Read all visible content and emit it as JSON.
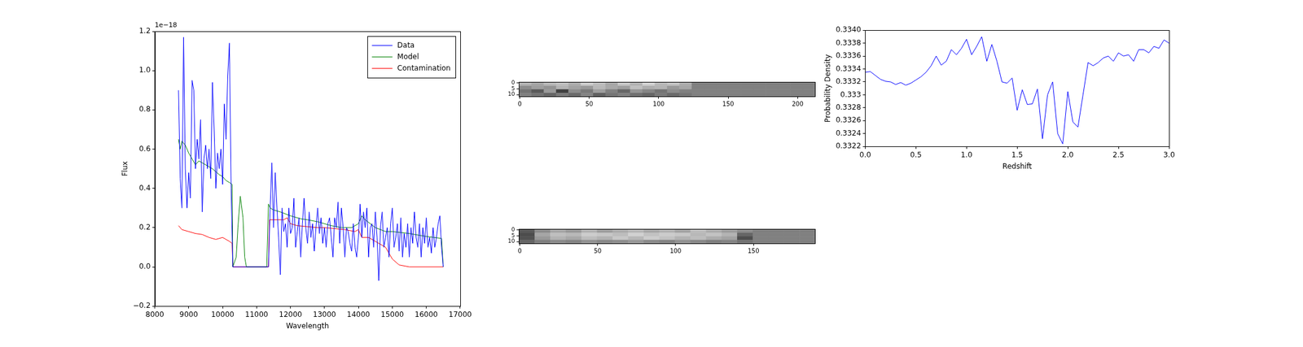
{
  "chart_data": [
    {
      "type": "line",
      "x_label": "Wavelength",
      "y_label": "Flux",
      "y_offset_text": "1e−18",
      "xlim": [
        8000,
        17000
      ],
      "xticks": [
        8000,
        9000,
        10000,
        11000,
        12000,
        13000,
        14000,
        15000,
        16000,
        17000
      ],
      "ylim": [
        -0.2,
        1.2
      ],
      "yticks": [
        {
          "value": -0.2,
          "label": "−0.2"
        },
        {
          "value": 0.0,
          "label": "0.0"
        },
        0.2,
        0.4,
        0.6,
        0.8,
        {
          "value": 1.0,
          "label": "1.0"
        },
        1.2
      ],
      "grid": false,
      "legend": "upper right",
      "series": [
        {
          "name": "Data",
          "color": "#0000ff",
          "x": [
            8700,
            8750,
            8800,
            8850,
            8900,
            8950,
            9000,
            9050,
            9100,
            9150,
            9200,
            9250,
            9300,
            9350,
            9400,
            9450,
            9500,
            9550,
            9600,
            9650,
            9700,
            9750,
            9800,
            9850,
            9900,
            9950,
            10000,
            10050,
            10100,
            10150,
            10200,
            10250,
            10300,
            11350,
            11400,
            11450,
            11500,
            11550,
            11600,
            11650,
            11700,
            11750,
            11800,
            11850,
            11900,
            11950,
            12000,
            12050,
            12100,
            12150,
            12200,
            12250,
            12300,
            12350,
            12400,
            12450,
            12500,
            12550,
            12600,
            12650,
            12700,
            12750,
            12800,
            12850,
            12900,
            12950,
            13000,
            13050,
            13100,
            13150,
            13200,
            13250,
            13300,
            13350,
            13400,
            13450,
            13500,
            13550,
            13600,
            13650,
            13700,
            13750,
            13800,
            13850,
            13900,
            13950,
            14000,
            14050,
            14100,
            14150,
            14200,
            14250,
            14300,
            14350,
            14400,
            14450,
            14500,
            14550,
            14600,
            14650,
            14700,
            14750,
            14800,
            14850,
            14900,
            14950,
            15000,
            15050,
            15100,
            15150,
            15200,
            15250,
            15300,
            15350,
            15400,
            15450,
            15500,
            15550,
            15600,
            15650,
            15700,
            15750,
            15800,
            15850,
            15900,
            15950,
            16000,
            16050,
            16100,
            16150,
            16200,
            16250,
            16300,
            16350,
            16400,
            16450,
            16500
          ],
          "values": [
            0.9,
            0.45,
            0.3,
            1.17,
            0.5,
            0.3,
            0.48,
            0.35,
            0.95,
            0.9,
            0.5,
            0.65,
            0.55,
            0.75,
            0.28,
            0.55,
            0.62,
            0.5,
            0.6,
            0.45,
            0.94,
            0.7,
            0.4,
            0.58,
            0.5,
            0.6,
            0.42,
            0.83,
            0.65,
            0.97,
            1.14,
            0.4,
            0.0,
            0.0,
            0.3,
            0.53,
            0.2,
            0.48,
            0.3,
            0.15,
            -0.04,
            0.3,
            0.18,
            0.22,
            0.1,
            0.3,
            0.17,
            0.2,
            0.35,
            0.1,
            0.18,
            0.25,
            0.05,
            0.22,
            0.35,
            0.2,
            0.12,
            0.28,
            0.15,
            0.22,
            0.08,
            0.2,
            0.3,
            0.17,
            0.25,
            0.12,
            0.2,
            0.1,
            0.22,
            0.25,
            0.15,
            0.05,
            0.25,
            0.2,
            0.33,
            0.12,
            0.3,
            0.2,
            0.05,
            0.2,
            0.18,
            0.12,
            0.08,
            0.22,
            0.1,
            0.05,
            0.15,
            0.32,
            0.15,
            0.28,
            0.2,
            0.3,
            0.05,
            0.2,
            0.22,
            0.1,
            0.28,
            0.15,
            -0.07,
            0.2,
            0.28,
            0.1,
            0.15,
            0.2,
            0.05,
            0.22,
            0.3,
            0.1,
            0.15,
            0.22,
            0.08,
            0.25,
            0.05,
            0.17,
            0.1,
            0.22,
            0.05,
            0.2,
            0.12,
            0.28,
            0.15,
            0.1,
            0.22,
            0.05,
            0.2,
            0.12,
            0.25,
            0.1,
            0.15,
            0.07,
            0.2,
            0.1,
            0.15,
            0.22,
            0.26,
            0.1,
            0.0
          ]
        },
        {
          "name": "Model",
          "color": "#008000",
          "x": [
            8700,
            8750,
            8800,
            8900,
            9000,
            9200,
            9300,
            9500,
            9700,
            9900,
            10000,
            10100,
            10200,
            10280,
            10300,
            10400,
            10450,
            10520,
            10600,
            10650,
            10700,
            11300,
            11350,
            11400,
            11500,
            11700,
            12000,
            12300,
            12500,
            12800,
            13000,
            13200,
            13500,
            13800,
            14000,
            14100,
            14200,
            14500,
            14800,
            15000,
            15500,
            16000,
            16450,
            16500
          ],
          "values": [
            0.65,
            0.6,
            0.64,
            0.62,
            0.58,
            0.52,
            0.54,
            0.52,
            0.5,
            0.47,
            0.46,
            0.44,
            0.43,
            0.42,
            0.0,
            0.05,
            0.2,
            0.36,
            0.25,
            0.05,
            0.0,
            0.0,
            0.32,
            0.3,
            0.29,
            0.28,
            0.26,
            0.245,
            0.24,
            0.23,
            0.22,
            0.21,
            0.2,
            0.2,
            0.22,
            0.26,
            0.24,
            0.2,
            0.18,
            0.18,
            0.17,
            0.155,
            0.145,
            0.0
          ]
        },
        {
          "name": "Contamination",
          "color": "#ff0000",
          "x": [
            8700,
            8800,
            9000,
            9200,
            9400,
            9600,
            9800,
            10000,
            10200,
            10280,
            10300,
            11350,
            11380,
            11500,
            11800,
            11900,
            12000,
            12200,
            12500,
            12800,
            13000,
            13300,
            13600,
            13900,
            14000,
            14100,
            14300,
            14500,
            14800,
            14900,
            15000,
            15200,
            15500,
            16500
          ],
          "values": [
            0.21,
            0.19,
            0.18,
            0.17,
            0.165,
            0.15,
            0.14,
            0.15,
            0.13,
            0.12,
            0.0,
            0.0,
            0.24,
            0.24,
            0.24,
            0.25,
            0.22,
            0.21,
            0.205,
            0.2,
            0.2,
            0.195,
            0.19,
            0.18,
            0.19,
            0.15,
            0.15,
            0.13,
            0.1,
            0.07,
            0.04,
            0.01,
            0.0,
            0.0
          ]
        }
      ]
    },
    {
      "type": "heatmap",
      "xlim": [
        -0.5,
        212.5
      ],
      "xticks": [
        0,
        50,
        100,
        150,
        200
      ],
      "ylim": [
        11.5,
        -0.5
      ],
      "yticks": [
        0,
        5,
        10
      ],
      "cells": [
        [
          0.7,
          0.65,
          0.72,
          0.75,
          0.68,
          0.8,
          0.74,
          0.66,
          0.78,
          0.7,
          0.82,
          0.72,
          0.76,
          0.68,
          0.5,
          0.5,
          0.5,
          0.5,
          0.5,
          0.5,
          0.5,
          0.5,
          0.5,
          0.5
        ],
        [
          0.55,
          0.62,
          0.58,
          0.7,
          0.64,
          0.6,
          0.72,
          0.66,
          0.62,
          0.75,
          0.68,
          0.7,
          0.6,
          0.65,
          0.5,
          0.5,
          0.5,
          0.5,
          0.5,
          0.5,
          0.5,
          0.5,
          0.5,
          0.5
        ],
        [
          0.45,
          0.35,
          0.6,
          0.25,
          0.55,
          0.48,
          0.62,
          0.5,
          0.4,
          0.58,
          0.52,
          0.45,
          0.55,
          0.5,
          0.5,
          0.5,
          0.5,
          0.5,
          0.5,
          0.5,
          0.5,
          0.5,
          0.5,
          0.5
        ],
        [
          0.5,
          0.45,
          0.4,
          0.48,
          0.42,
          0.52,
          0.38,
          0.46,
          0.5,
          0.44,
          0.4,
          0.48,
          0.42,
          0.46,
          0.5,
          0.5,
          0.5,
          0.5,
          0.5,
          0.5,
          0.5,
          0.5,
          0.5,
          0.5
        ]
      ]
    },
    {
      "type": "heatmap",
      "xlim": [
        -0.5,
        189.5
      ],
      "xticks": [
        0,
        50,
        100,
        150
      ],
      "ylim": [
        11.5,
        -0.5
      ],
      "yticks": [
        0,
        5,
        10
      ],
      "cells": [
        [
          0.35,
          0.55,
          0.65,
          0.6,
          0.7,
          0.62,
          0.68,
          0.72,
          0.66,
          0.7,
          0.64,
          0.74,
          0.68,
          0.62,
          0.55,
          0.5,
          0.5,
          0.5,
          0.5
        ],
        [
          0.3,
          0.65,
          0.75,
          0.72,
          0.8,
          0.78,
          0.74,
          0.82,
          0.76,
          0.8,
          0.78,
          0.72,
          0.76,
          0.7,
          0.4,
          0.5,
          0.5,
          0.5,
          0.5
        ],
        [
          0.32,
          0.6,
          0.7,
          0.66,
          0.74,
          0.7,
          0.78,
          0.72,
          0.8,
          0.76,
          0.7,
          0.74,
          0.68,
          0.64,
          0.3,
          0.5,
          0.5,
          0.5,
          0.5
        ],
        [
          0.4,
          0.5,
          0.55,
          0.52,
          0.58,
          0.54,
          0.56,
          0.6,
          0.55,
          0.52,
          0.58,
          0.54,
          0.5,
          0.52,
          0.45,
          0.5,
          0.5,
          0.5,
          0.5
        ]
      ]
    },
    {
      "type": "line",
      "x_label": "Redshift",
      "y_label": "Probability Density",
      "xlim": [
        0.0,
        3.0
      ],
      "xticks": [
        {
          "value": 0.0,
          "label": "0.0"
        },
        0.5,
        {
          "value": 1.0,
          "label": "1.0"
        },
        1.5,
        {
          "value": 2.0,
          "label": "2.0"
        },
        2.5,
        {
          "value": 3.0,
          "label": "3.0"
        }
      ],
      "ylim": [
        0.3322,
        0.334
      ],
      "yticks": [
        0.3322,
        0.3324,
        0.3326,
        0.3328,
        0.333,
        0.3332,
        0.3334,
        0.3336,
        0.3338,
        {
          "value": 0.334,
          "label": "0.3340"
        }
      ],
      "grid": false,
      "series": [
        {
          "color": "#0000ff",
          "x": [
            0.0,
            0.05,
            0.1,
            0.15,
            0.2,
            0.25,
            0.3,
            0.35,
            0.4,
            0.45,
            0.5,
            0.55,
            0.6,
            0.65,
            0.7,
            0.75,
            0.8,
            0.85,
            0.9,
            0.95,
            1.0,
            1.05,
            1.1,
            1.15,
            1.2,
            1.25,
            1.3,
            1.35,
            1.4,
            1.45,
            1.5,
            1.55,
            1.6,
            1.65,
            1.7,
            1.75,
            1.8,
            1.85,
            1.9,
            1.95,
            2.0,
            2.05,
            2.1,
            2.15,
            2.2,
            2.25,
            2.3,
            2.35,
            2.4,
            2.45,
            2.5,
            2.55,
            2.6,
            2.65,
            2.7,
            2.75,
            2.8,
            2.85,
            2.9,
            2.95,
            3.0
          ],
          "values": [
            0.33335,
            0.33336,
            0.3333,
            0.33324,
            0.33321,
            0.3332,
            0.33316,
            0.33319,
            0.33315,
            0.33318,
            0.33323,
            0.33328,
            0.33335,
            0.33345,
            0.3336,
            0.33346,
            0.33352,
            0.3337,
            0.33362,
            0.33372,
            0.33386,
            0.33362,
            0.33375,
            0.3339,
            0.33352,
            0.33378,
            0.33352,
            0.3332,
            0.33318,
            0.33326,
            0.33276,
            0.33308,
            0.33285,
            0.33286,
            0.33309,
            0.33232,
            0.333,
            0.3332,
            0.3324,
            0.33224,
            0.33305,
            0.33258,
            0.3325,
            0.333,
            0.3335,
            0.33345,
            0.3335,
            0.33357,
            0.3336,
            0.33352,
            0.33365,
            0.3336,
            0.33362,
            0.33352,
            0.3337,
            0.3337,
            0.33365,
            0.33375,
            0.33372,
            0.33385,
            0.3338
          ]
        }
      ]
    }
  ]
}
